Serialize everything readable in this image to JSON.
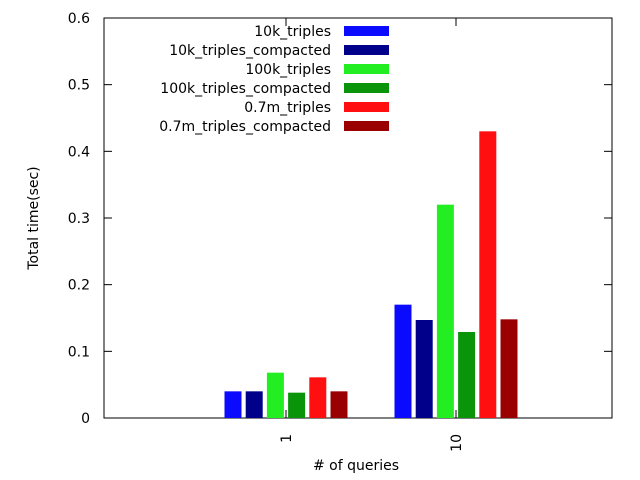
{
  "chart_data": {
    "type": "bar",
    "title": "",
    "xlabel": "# of queries",
    "ylabel": "Total time(sec)",
    "ylim": [
      0,
      0.6
    ],
    "yticks": [
      "0",
      "0.1",
      "0.2",
      "0.3",
      "0.4",
      "0.5",
      "0.6"
    ],
    "categories": [
      "1",
      "10"
    ],
    "legend_position": "top-right",
    "grid": false,
    "series": [
      {
        "name": "10k_triples",
        "color": "#0a0aff",
        "values": [
          0.04,
          0.17
        ]
      },
      {
        "name": "10k_triples_compacted",
        "color": "#00008b",
        "values": [
          0.04,
          0.147
        ]
      },
      {
        "name": "100k_triples",
        "color": "#22ee22",
        "values": [
          0.068,
          0.32
        ]
      },
      {
        "name": "100k_triples_compacted",
        "color": "#0a940a",
        "values": [
          0.038,
          0.129
        ]
      },
      {
        "name": "0.7m_triples",
        "color": "#ff0f0f",
        "values": [
          0.061,
          0.43
        ]
      },
      {
        "name": "0.7m_triples_compacted",
        "color": "#9b0000",
        "values": [
          0.04,
          0.148
        ]
      }
    ]
  }
}
